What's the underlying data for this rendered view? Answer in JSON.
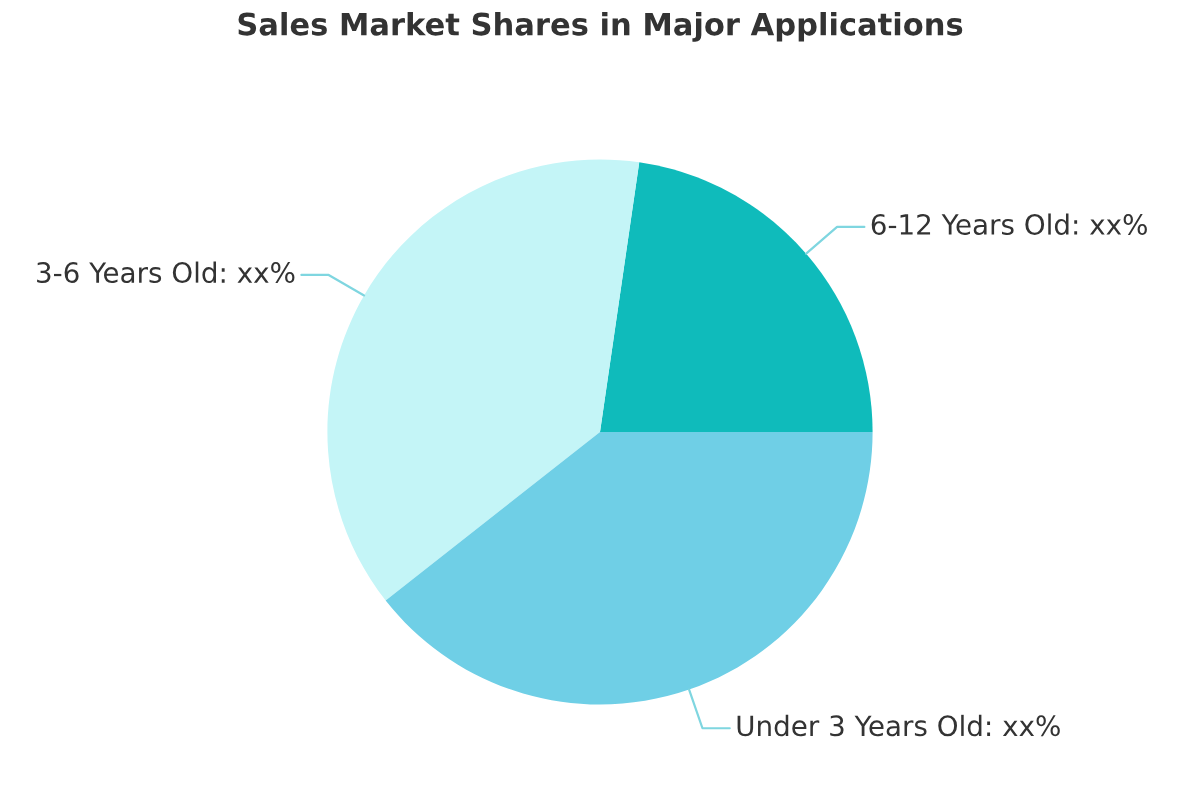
{
  "chart_data": {
    "type": "pie",
    "title": "Sales Market Shares in Major Applications",
    "categories": [
      "6-12 Years Old",
      "3-6 Years Old",
      "Under 3 Years Old"
    ],
    "values": [
      22.7,
      37.9,
      39.4
    ],
    "colors": [
      "#0fbbbb",
      "#c4f5f7",
      "#6fcfe6"
    ],
    "value_labels": [
      "xx%",
      "xx%",
      "xx%"
    ]
  }
}
